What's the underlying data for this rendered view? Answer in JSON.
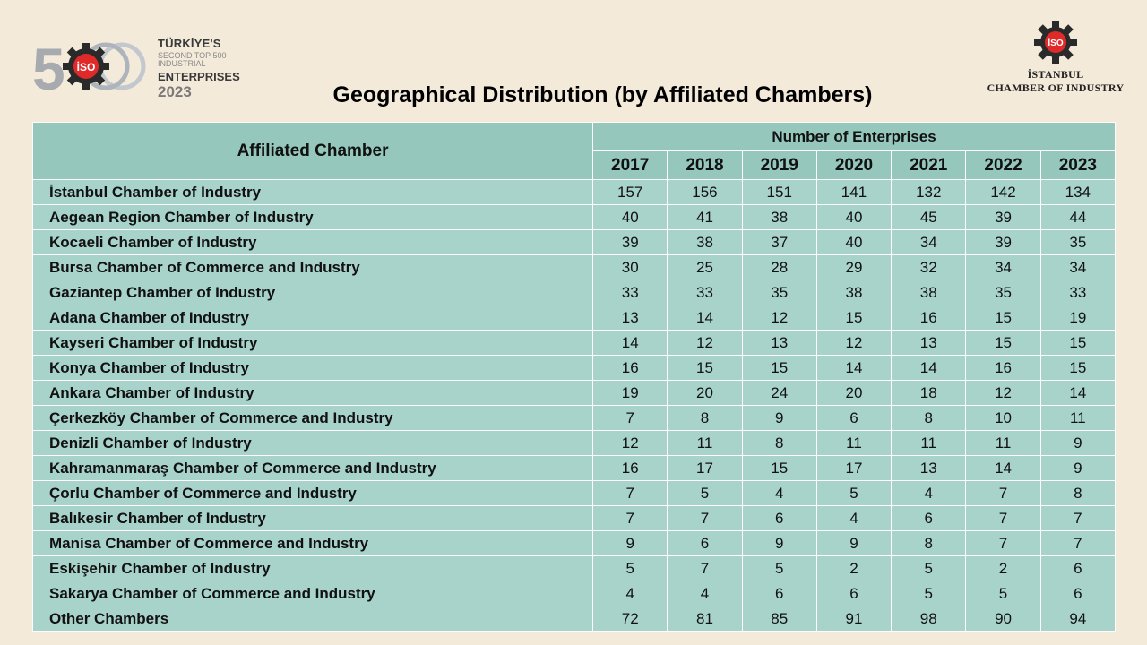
{
  "logo_left": {
    "line1": "TÜRKİYE'S",
    "line2": "SECOND TOP 500 INDUSTRIAL",
    "line3": "ENTERPRISES",
    "line4": "2023",
    "badge_text": "İSO"
  },
  "logo_right": {
    "badge_text": "İSO",
    "line1": "İSTANBUL",
    "line2": "CHAMBER OF INDUSTRY"
  },
  "title": "Geographical Distribution (by Affiliated Chambers)",
  "table": {
    "chamber_header": "Affiliated Chamber",
    "group_header": "Number of Enterprises",
    "years": [
      "2017",
      "2018",
      "2019",
      "2020",
      "2021",
      "2022",
      "2023"
    ],
    "rows": [
      {
        "name": "İstanbul Chamber of Industry",
        "values": [
          "157",
          "156",
          "151",
          "141",
          "132",
          "142",
          "134"
        ]
      },
      {
        "name": "Aegean Region Chamber of Industry",
        "values": [
          "40",
          "41",
          "38",
          "40",
          "45",
          "39",
          "44"
        ]
      },
      {
        "name": "Kocaeli Chamber of Industry",
        "values": [
          "39",
          "38",
          "37",
          "40",
          "34",
          "39",
          "35"
        ]
      },
      {
        "name": "Bursa Chamber of Commerce and Industry",
        "values": [
          "30",
          "25",
          "28",
          "29",
          "32",
          "34",
          "34"
        ]
      },
      {
        "name": "Gaziantep Chamber of Industry",
        "values": [
          "33",
          "33",
          "35",
          "38",
          "38",
          "35",
          "33"
        ]
      },
      {
        "name": "Adana Chamber of Industry",
        "values": [
          "13",
          "14",
          "12",
          "15",
          "16",
          "15",
          "19"
        ]
      },
      {
        "name": "Kayseri Chamber of Industry",
        "values": [
          "14",
          "12",
          "13",
          "12",
          "13",
          "15",
          "15"
        ]
      },
      {
        "name": "Konya Chamber of Industry",
        "values": [
          "16",
          "15",
          "15",
          "14",
          "14",
          "16",
          "15"
        ]
      },
      {
        "name": "Ankara Chamber of Industry",
        "values": [
          "19",
          "20",
          "24",
          "20",
          "18",
          "12",
          "14"
        ]
      },
      {
        "name": "Çerkezköy Chamber of Commerce and Industry",
        "values": [
          "7",
          "8",
          "9",
          "6",
          "8",
          "10",
          "11"
        ]
      },
      {
        "name": "Denizli Chamber of Industry",
        "values": [
          "12",
          "11",
          "8",
          "11",
          "11",
          "11",
          "9"
        ]
      },
      {
        "name": "Kahramanmaraş Chamber of Commerce and Industry",
        "values": [
          "16",
          "17",
          "15",
          "17",
          "13",
          "14",
          "9"
        ]
      },
      {
        "name": "Çorlu Chamber of Commerce and Industry",
        "values": [
          "7",
          "5",
          "4",
          "5",
          "4",
          "7",
          "8"
        ]
      },
      {
        "name": "Balıkesir Chamber of Industry",
        "values": [
          "7",
          "7",
          "6",
          "4",
          "6",
          "7",
          "7"
        ]
      },
      {
        "name": "Manisa Chamber of Commerce and Industry",
        "values": [
          "9",
          "6",
          "9",
          "9",
          "8",
          "7",
          "7"
        ]
      },
      {
        "name": "Eskişehir Chamber of Industry",
        "values": [
          "5",
          "7",
          "5",
          "2",
          "5",
          "2",
          "6"
        ]
      },
      {
        "name": "Sakarya Chamber of Commerce and Industry",
        "values": [
          "4",
          "4",
          "6",
          "6",
          "5",
          "5",
          "6"
        ]
      },
      {
        "name": "Other Chambers",
        "values": [
          "72",
          "81",
          "85",
          "91",
          "98",
          "90",
          "94"
        ]
      }
    ]
  }
}
